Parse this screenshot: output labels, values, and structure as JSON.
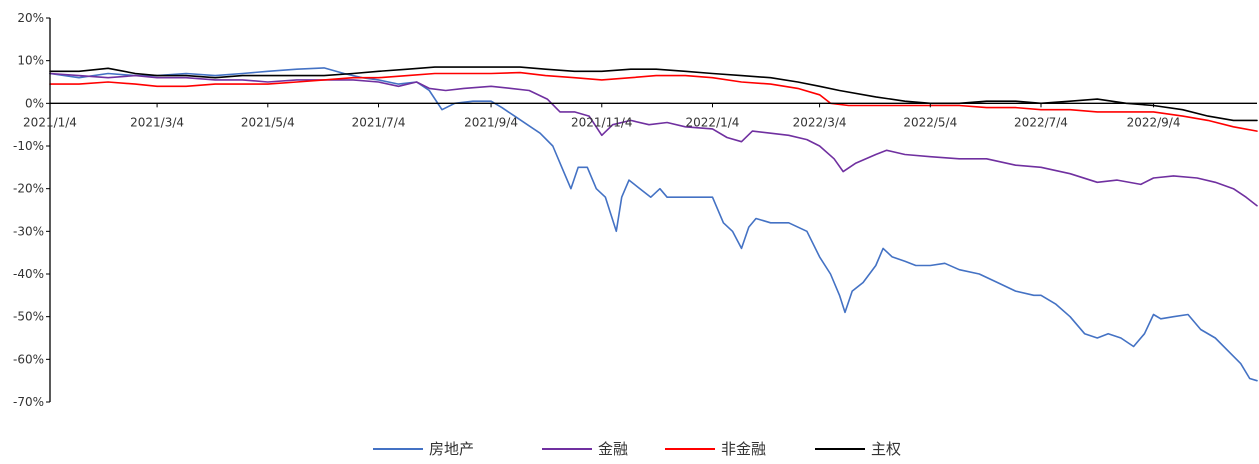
{
  "chart_data": {
    "type": "line",
    "title": "",
    "xlabel": "",
    "ylabel": "",
    "ylim": [
      -70,
      20
    ],
    "y_unit": "%",
    "x_range": [
      "2021-01-04",
      "2022-10-31"
    ],
    "y_ticks": [
      "20%",
      "10%",
      "0%",
      "-10%",
      "-20%",
      "-30%",
      "-40%",
      "-50%",
      "-60%",
      "-70%"
    ],
    "y_tick_values": [
      20,
      10,
      0,
      -10,
      -20,
      -30,
      -40,
      -50,
      -60,
      -70
    ],
    "x_ticks": [
      "2021/1/4",
      "2021/3/4",
      "2021/5/4",
      "2021/7/4",
      "2021/9/4",
      "2021/11/4",
      "2022/1/4",
      "2022/3/4",
      "2022/5/4",
      "2022/7/4",
      "2022/9/4"
    ],
    "x_tick_dates": [
      "2021-01-04",
      "2021-03-04",
      "2021-05-04",
      "2021-07-04",
      "2021-09-04",
      "2021-11-04",
      "2022-01-04",
      "2022-03-04",
      "2022-05-04",
      "2022-07-04",
      "2022-09-04"
    ],
    "grid": false,
    "legend_position": "bottom-center",
    "series": [
      {
        "name": "房地产",
        "color": "#4472C4",
        "points": [
          [
            "2021-01-04",
            7
          ],
          [
            "2021-01-20",
            6
          ],
          [
            "2021-02-05",
            7
          ],
          [
            "2021-02-20",
            6.5
          ],
          [
            "2021-03-04",
            6.5
          ],
          [
            "2021-03-20",
            7
          ],
          [
            "2021-04-05",
            6.5
          ],
          [
            "2021-04-20",
            7
          ],
          [
            "2021-05-04",
            7.5
          ],
          [
            "2021-05-20",
            8
          ],
          [
            "2021-06-04",
            8.3
          ],
          [
            "2021-06-15",
            7
          ],
          [
            "2021-06-25",
            6
          ],
          [
            "2021-07-04",
            5.5
          ],
          [
            "2021-07-15",
            4.5
          ],
          [
            "2021-07-25",
            5
          ],
          [
            "2021-08-01",
            3
          ],
          [
            "2021-08-08",
            -1.5
          ],
          [
            "2021-08-15",
            0
          ],
          [
            "2021-08-25",
            0.5
          ],
          [
            "2021-09-04",
            0.5
          ],
          [
            "2021-09-10",
            -1
          ],
          [
            "2021-09-17",
            -3
          ],
          [
            "2021-09-24",
            -5
          ],
          [
            "2021-10-01",
            -7
          ],
          [
            "2021-10-08",
            -10
          ],
          [
            "2021-10-13",
            -15
          ],
          [
            "2021-10-18",
            -20
          ],
          [
            "2021-10-22",
            -15
          ],
          [
            "2021-10-27",
            -15
          ],
          [
            "2021-11-01",
            -20
          ],
          [
            "2021-11-06",
            -22
          ],
          [
            "2021-11-12",
            -30
          ],
          [
            "2021-11-15",
            -22
          ],
          [
            "2021-11-19",
            -18
          ],
          [
            "2021-11-25",
            -20
          ],
          [
            "2021-12-01",
            -22
          ],
          [
            "2021-12-06",
            -20
          ],
          [
            "2021-12-10",
            -22
          ],
          [
            "2021-12-20",
            -22
          ],
          [
            "2022-01-04",
            -22
          ],
          [
            "2022-01-10",
            -28
          ],
          [
            "2022-01-15",
            -30
          ],
          [
            "2022-01-20",
            -34
          ],
          [
            "2022-01-24",
            -29
          ],
          [
            "2022-01-28",
            -27
          ],
          [
            "2022-02-05",
            -28
          ],
          [
            "2022-02-15",
            -28
          ],
          [
            "2022-02-25",
            -30
          ],
          [
            "2022-03-04",
            -36
          ],
          [
            "2022-03-10",
            -40
          ],
          [
            "2022-03-15",
            -45
          ],
          [
            "2022-03-18",
            -49
          ],
          [
            "2022-03-22",
            -44
          ],
          [
            "2022-03-28",
            -42
          ],
          [
            "2022-04-04",
            -38
          ],
          [
            "2022-04-08",
            -34
          ],
          [
            "2022-04-13",
            -36
          ],
          [
            "2022-04-20",
            -37
          ],
          [
            "2022-04-26",
            -38
          ],
          [
            "2022-05-04",
            -38
          ],
          [
            "2022-05-12",
            -37.5
          ],
          [
            "2022-05-20",
            -39
          ],
          [
            "2022-05-31",
            -40
          ],
          [
            "2022-06-10",
            -42
          ],
          [
            "2022-06-20",
            -44
          ],
          [
            "2022-06-30",
            -45
          ],
          [
            "2022-07-04",
            -45
          ],
          [
            "2022-07-12",
            -47
          ],
          [
            "2022-07-20",
            -50
          ],
          [
            "2022-07-28",
            -54
          ],
          [
            "2022-08-04",
            -55
          ],
          [
            "2022-08-10",
            -54
          ],
          [
            "2022-08-17",
            -55
          ],
          [
            "2022-08-24",
            -57
          ],
          [
            "2022-08-30",
            -54
          ],
          [
            "2022-09-04",
            -49.5
          ],
          [
            "2022-09-08",
            -50.5
          ],
          [
            "2022-09-15",
            -50
          ],
          [
            "2022-09-23",
            -49.5
          ],
          [
            "2022-09-30",
            -53
          ],
          [
            "2022-10-08",
            -55
          ],
          [
            "2022-10-15",
            -58
          ],
          [
            "2022-10-22",
            -61
          ],
          [
            "2022-10-27",
            -64.5
          ],
          [
            "2022-10-31",
            -65
          ]
        ]
      },
      {
        "name": "金融",
        "color": "#7030A0",
        "points": [
          [
            "2021-01-04",
            7
          ],
          [
            "2021-01-20",
            6.5
          ],
          [
            "2021-02-05",
            6
          ],
          [
            "2021-02-20",
            6.5
          ],
          [
            "2021-03-04",
            6
          ],
          [
            "2021-03-20",
            6
          ],
          [
            "2021-04-05",
            5.5
          ],
          [
            "2021-04-20",
            5.5
          ],
          [
            "2021-05-04",
            5
          ],
          [
            "2021-05-20",
            5.5
          ],
          [
            "2021-06-04",
            5.5
          ],
          [
            "2021-06-20",
            5.5
          ],
          [
            "2021-07-04",
            5
          ],
          [
            "2021-07-15",
            4
          ],
          [
            "2021-07-25",
            5
          ],
          [
            "2021-08-01",
            3.5
          ],
          [
            "2021-08-10",
            3
          ],
          [
            "2021-08-20",
            3.5
          ],
          [
            "2021-09-04",
            4
          ],
          [
            "2021-09-15",
            3.5
          ],
          [
            "2021-09-25",
            3
          ],
          [
            "2021-10-05",
            1
          ],
          [
            "2021-10-12",
            -2
          ],
          [
            "2021-10-20",
            -2
          ],
          [
            "2021-10-28",
            -3
          ],
          [
            "2021-11-04",
            -7.5
          ],
          [
            "2021-11-10",
            -5
          ],
          [
            "2021-11-20",
            -4
          ],
          [
            "2021-11-30",
            -5
          ],
          [
            "2021-12-10",
            -4.5
          ],
          [
            "2021-12-20",
            -5.5
          ],
          [
            "2022-01-04",
            -6
          ],
          [
            "2022-01-12",
            -8
          ],
          [
            "2022-01-20",
            -9
          ],
          [
            "2022-01-26",
            -6.5
          ],
          [
            "2022-02-05",
            -7
          ],
          [
            "2022-02-15",
            -7.5
          ],
          [
            "2022-02-25",
            -8.5
          ],
          [
            "2022-03-04",
            -10
          ],
          [
            "2022-03-12",
            -13
          ],
          [
            "2022-03-17",
            -16
          ],
          [
            "2022-03-24",
            -14
          ],
          [
            "2022-04-04",
            -12
          ],
          [
            "2022-04-10",
            -11
          ],
          [
            "2022-04-20",
            -12
          ],
          [
            "2022-05-04",
            -12.5
          ],
          [
            "2022-05-20",
            -13
          ],
          [
            "2022-06-04",
            -13
          ],
          [
            "2022-06-20",
            -14.5
          ],
          [
            "2022-07-04",
            -15
          ],
          [
            "2022-07-20",
            -16.5
          ],
          [
            "2022-08-04",
            -18.5
          ],
          [
            "2022-08-15",
            -18
          ],
          [
            "2022-08-28",
            -19
          ],
          [
            "2022-09-04",
            -17.5
          ],
          [
            "2022-09-15",
            -17
          ],
          [
            "2022-09-28",
            -17.5
          ],
          [
            "2022-10-08",
            -18.5
          ],
          [
            "2022-10-18",
            -20
          ],
          [
            "2022-10-25",
            -22
          ],
          [
            "2022-10-31",
            -24
          ]
        ]
      },
      {
        "name": "非金融",
        "color": "#FF0000",
        "points": [
          [
            "2021-01-04",
            4.5
          ],
          [
            "2021-01-20",
            4.5
          ],
          [
            "2021-02-05",
            5
          ],
          [
            "2021-02-20",
            4.5
          ],
          [
            "2021-03-04",
            4
          ],
          [
            "2021-03-20",
            4
          ],
          [
            "2021-04-05",
            4.5
          ],
          [
            "2021-04-20",
            4.5
          ],
          [
            "2021-05-04",
            4.5
          ],
          [
            "2021-05-20",
            5
          ],
          [
            "2021-06-04",
            5.5
          ],
          [
            "2021-06-20",
            6
          ],
          [
            "2021-07-04",
            6
          ],
          [
            "2021-07-20",
            6.5
          ],
          [
            "2021-08-04",
            7
          ],
          [
            "2021-08-20",
            7
          ],
          [
            "2021-09-04",
            7
          ],
          [
            "2021-09-20",
            7.2
          ],
          [
            "2021-10-04",
            6.5
          ],
          [
            "2021-10-20",
            6
          ],
          [
            "2021-11-04",
            5.5
          ],
          [
            "2021-11-20",
            6
          ],
          [
            "2021-12-04",
            6.5
          ],
          [
            "2021-12-20",
            6.5
          ],
          [
            "2022-01-04",
            6
          ],
          [
            "2022-01-20",
            5
          ],
          [
            "2022-02-05",
            4.5
          ],
          [
            "2022-02-20",
            3.5
          ],
          [
            "2022-03-04",
            2
          ],
          [
            "2022-03-10",
            0
          ],
          [
            "2022-03-20",
            -0.5
          ],
          [
            "2022-04-04",
            -0.5
          ],
          [
            "2022-04-20",
            -0.5
          ],
          [
            "2022-05-04",
            -0.5
          ],
          [
            "2022-05-20",
            -0.5
          ],
          [
            "2022-06-04",
            -1
          ],
          [
            "2022-06-20",
            -1
          ],
          [
            "2022-07-04",
            -1.5
          ],
          [
            "2022-07-20",
            -1.5
          ],
          [
            "2022-08-04",
            -2
          ],
          [
            "2022-08-20",
            -2
          ],
          [
            "2022-09-04",
            -2
          ],
          [
            "2022-09-20",
            -3
          ],
          [
            "2022-10-04",
            -4
          ],
          [
            "2022-10-18",
            -5.5
          ],
          [
            "2022-10-31",
            -6.5
          ]
        ]
      },
      {
        "name": "主权",
        "color": "#000000",
        "points": [
          [
            "2021-01-04",
            7.5
          ],
          [
            "2021-01-20",
            7.5
          ],
          [
            "2021-02-05",
            8.2
          ],
          [
            "2021-02-20",
            7
          ],
          [
            "2021-03-04",
            6.5
          ],
          [
            "2021-03-20",
            6.5
          ],
          [
            "2021-04-05",
            6
          ],
          [
            "2021-04-20",
            6.5
          ],
          [
            "2021-05-04",
            6.5
          ],
          [
            "2021-05-20",
            6.5
          ],
          [
            "2021-06-04",
            6.5
          ],
          [
            "2021-06-20",
            7
          ],
          [
            "2021-07-04",
            7.5
          ],
          [
            "2021-07-20",
            8
          ],
          [
            "2021-08-04",
            8.5
          ],
          [
            "2021-08-20",
            8.5
          ],
          [
            "2021-09-04",
            8.5
          ],
          [
            "2021-09-20",
            8.5
          ],
          [
            "2021-10-04",
            8
          ],
          [
            "2021-10-20",
            7.5
          ],
          [
            "2021-11-04",
            7.5
          ],
          [
            "2021-11-20",
            8
          ],
          [
            "2021-12-04",
            8
          ],
          [
            "2021-12-20",
            7.5
          ],
          [
            "2022-01-04",
            7
          ],
          [
            "2022-01-20",
            6.5
          ],
          [
            "2022-02-05",
            6
          ],
          [
            "2022-02-20",
            5
          ],
          [
            "2022-03-04",
            4
          ],
          [
            "2022-03-15",
            3
          ],
          [
            "2022-04-04",
            1.5
          ],
          [
            "2022-04-20",
            0.5
          ],
          [
            "2022-05-04",
            0
          ],
          [
            "2022-05-20",
            0
          ],
          [
            "2022-06-04",
            0.5
          ],
          [
            "2022-06-20",
            0.5
          ],
          [
            "2022-07-04",
            0
          ],
          [
            "2022-07-20",
            0.5
          ],
          [
            "2022-08-04",
            1
          ],
          [
            "2022-08-20",
            0
          ],
          [
            "2022-09-04",
            -0.5
          ],
          [
            "2022-09-20",
            -1.5
          ],
          [
            "2022-10-04",
            -3
          ],
          [
            "2022-10-18",
            -4
          ],
          [
            "2022-10-31",
            -4
          ]
        ]
      }
    ]
  }
}
